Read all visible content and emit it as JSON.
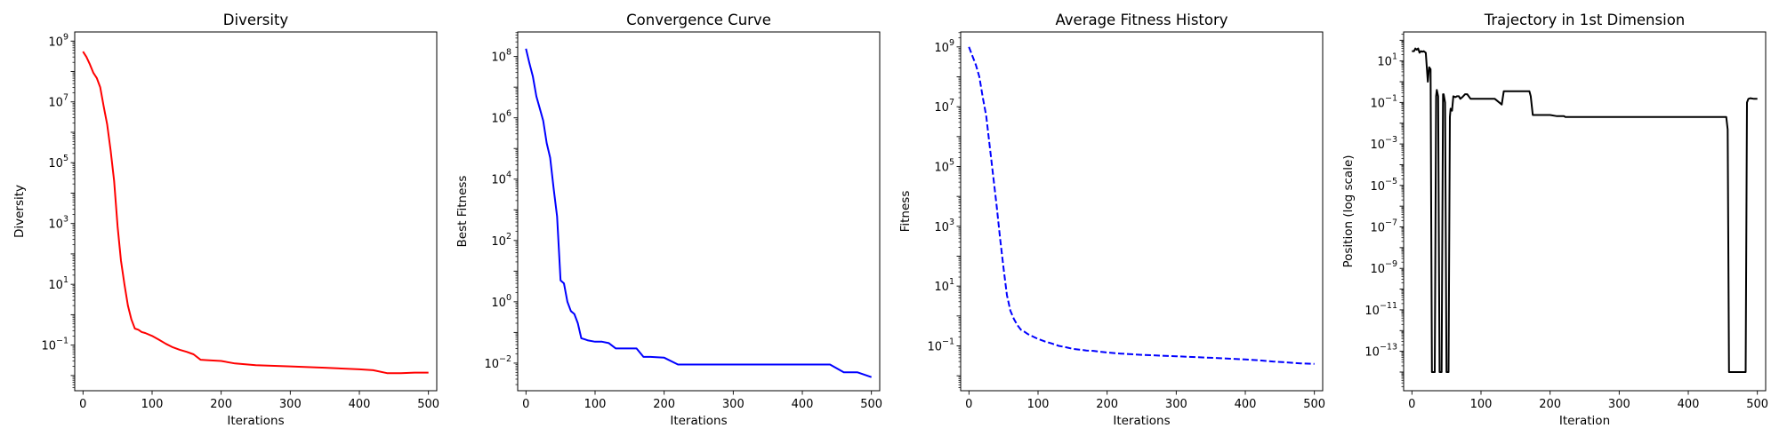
{
  "chart_data": [
    {
      "type": "line",
      "title": "Diversity",
      "xlabel": "Iterations",
      "ylabel": "Diversity",
      "yscale": "log",
      "xlim": [
        -12,
        512
      ],
      "ylim_log10": [
        -2.5,
        9.3
      ],
      "xticks": [
        "0",
        "100",
        "200",
        "300",
        "400",
        "500"
      ],
      "ytick_exponents": [
        "9",
        "7",
        "5",
        "3",
        "1",
        "−1"
      ],
      "line_style": "solid",
      "color": "#ff0000",
      "x": [
        0,
        5,
        10,
        15,
        20,
        25,
        30,
        35,
        40,
        45,
        50,
        55,
        60,
        65,
        70,
        75,
        80,
        85,
        90,
        100,
        110,
        120,
        130,
        140,
        150,
        160,
        170,
        180,
        200,
        220,
        250,
        300,
        350,
        400,
        420,
        440,
        460,
        480,
        500
      ],
      "y": [
        450000000.0,
        300000000.0,
        170000000.0,
        90000000.0,
        60000000.0,
        30000000.0,
        7000000.0,
        1800000.0,
        250000.0,
        25000.0,
        800,
        60,
        10,
        2,
        0.7,
        0.35,
        0.32,
        0.27,
        0.25,
        0.2,
        0.15,
        0.11,
        0.085,
        0.07,
        0.06,
        0.05,
        0.033,
        0.032,
        0.03,
        0.025,
        0.022,
        0.02,
        0.018,
        0.016,
        0.015,
        0.012,
        0.012,
        0.0125,
        0.0125
      ]
    },
    {
      "type": "line",
      "title": "Convergence Curve",
      "xlabel": "Iterations",
      "ylabel": "Best Fitness",
      "yscale": "log",
      "xlim": [
        -12,
        512
      ],
      "ylim_log10": [
        -2.9,
        8.8
      ],
      "xticks": [
        "0",
        "100",
        "200",
        "300",
        "400",
        "500"
      ],
      "ytick_exponents": [
        "8",
        "6",
        "4",
        "2",
        "0",
        "−2"
      ],
      "line_style": "solid",
      "color": "#0000ff",
      "x": [
        0,
        5,
        10,
        15,
        20,
        25,
        30,
        35,
        40,
        45,
        50,
        55,
        60,
        65,
        70,
        75,
        80,
        85,
        90,
        100,
        110,
        120,
        130,
        140,
        150,
        160,
        170,
        180,
        200,
        220,
        250,
        300,
        350,
        400,
        420,
        440,
        460,
        480,
        500
      ],
      "y": [
        180000000.0,
        60000000.0,
        22000000.0,
        5000000.0,
        2000000.0,
        800000.0,
        150000.0,
        50000.0,
        5000.0,
        600,
        5,
        4,
        1,
        0.5,
        0.4,
        0.2,
        0.065,
        0.06,
        0.055,
        0.05,
        0.05,
        0.045,
        0.03,
        0.03,
        0.03,
        0.03,
        0.016,
        0.016,
        0.015,
        0.009,
        0.009,
        0.009,
        0.009,
        0.009,
        0.009,
        0.009,
        0.005,
        0.005,
        0.0035
      ]
    },
    {
      "type": "line",
      "title": "Average Fitness History",
      "xlabel": "Iterations",
      "ylabel": "Fitness",
      "yscale": "log",
      "xlim": [
        -12,
        512
      ],
      "ylim_log10": [
        -2.5,
        9.5
      ],
      "xticks": [
        "0",
        "100",
        "200",
        "300",
        "400",
        "500"
      ],
      "ytick_exponents": [
        "9",
        "7",
        "5",
        "3",
        "1",
        "−1"
      ],
      "line_style": "dashed",
      "color": "#0000ff",
      "x": [
        0,
        5,
        10,
        15,
        20,
        25,
        30,
        35,
        40,
        45,
        50,
        55,
        60,
        65,
        70,
        75,
        80,
        85,
        90,
        100,
        110,
        120,
        130,
        140,
        150,
        160,
        170,
        180,
        200,
        220,
        250,
        300,
        350,
        400,
        420,
        440,
        460,
        480,
        500
      ],
      "y": [
        1000000000.0,
        500000000.0,
        250000000.0,
        100000000.0,
        20000000.0,
        5000000.0,
        500000.0,
        50000.0,
        5000.0,
        400,
        40,
        5,
        1.5,
        0.8,
        0.5,
        0.35,
        0.3,
        0.25,
        0.22,
        0.17,
        0.14,
        0.12,
        0.1,
        0.09,
        0.08,
        0.075,
        0.07,
        0.068,
        0.06,
        0.055,
        0.05,
        0.045,
        0.04,
        0.035,
        0.033,
        0.03,
        0.028,
        0.026,
        0.025
      ]
    },
    {
      "type": "line",
      "title": "Trajectory in 1st Dimension",
      "xlabel": "Iteration",
      "ylabel": "Position (log scale)",
      "yscale": "log",
      "xlim": [
        -12,
        512
      ],
      "ylim_log10": [
        -14.9,
        2.4
      ],
      "xticks": [
        "0",
        "100",
        "200",
        "300",
        "400",
        "500"
      ],
      "ytick_exponents": [
        "1",
        "−1",
        "−3",
        "−5",
        "−7",
        "−9",
        "−11",
        "−13"
      ],
      "line_style": "solid",
      "color": "#000000",
      "x": [
        0,
        3,
        5,
        7,
        9,
        11,
        13,
        15,
        17,
        20,
        23,
        25,
        27,
        29,
        31,
        33,
        35,
        36,
        38,
        40,
        43,
        45,
        46,
        48,
        50,
        53,
        55,
        56,
        58,
        60,
        63,
        65,
        68,
        70,
        73,
        77,
        80,
        85,
        90,
        95,
        100,
        105,
        120,
        130,
        133,
        135,
        140,
        150,
        160,
        165,
        170,
        172,
        175,
        180,
        190,
        200,
        210,
        220,
        222,
        250,
        300,
        350,
        400,
        450,
        455,
        457,
        459,
        460,
        480,
        483,
        485,
        487,
        490,
        495,
        500
      ],
      "y": [
        30,
        30,
        40,
        35,
        40,
        25,
        30,
        28,
        30,
        25,
        1,
        5,
        4,
        1e-14,
        1e-14,
        1e-14,
        0.2,
        0.4,
        0.2,
        1e-14,
        1e-14,
        0.25,
        0.25,
        0.1,
        1e-14,
        1e-14,
        0.02,
        0.05,
        0.04,
        0.2,
        0.18,
        0.2,
        0.2,
        0.15,
        0.18,
        0.25,
        0.25,
        0.15,
        0.15,
        0.15,
        0.15,
        0.15,
        0.15,
        0.08,
        0.35,
        0.35,
        0.35,
        0.35,
        0.35,
        0.35,
        0.35,
        0.2,
        0.025,
        0.025,
        0.025,
        0.025,
        0.022,
        0.022,
        0.02,
        0.02,
        0.02,
        0.02,
        0.02,
        0.02,
        0.02,
        0.005,
        1e-14,
        1e-14,
        1e-14,
        1e-14,
        0.1,
        0.15,
        0.16,
        0.15,
        0.15
      ]
    }
  ]
}
